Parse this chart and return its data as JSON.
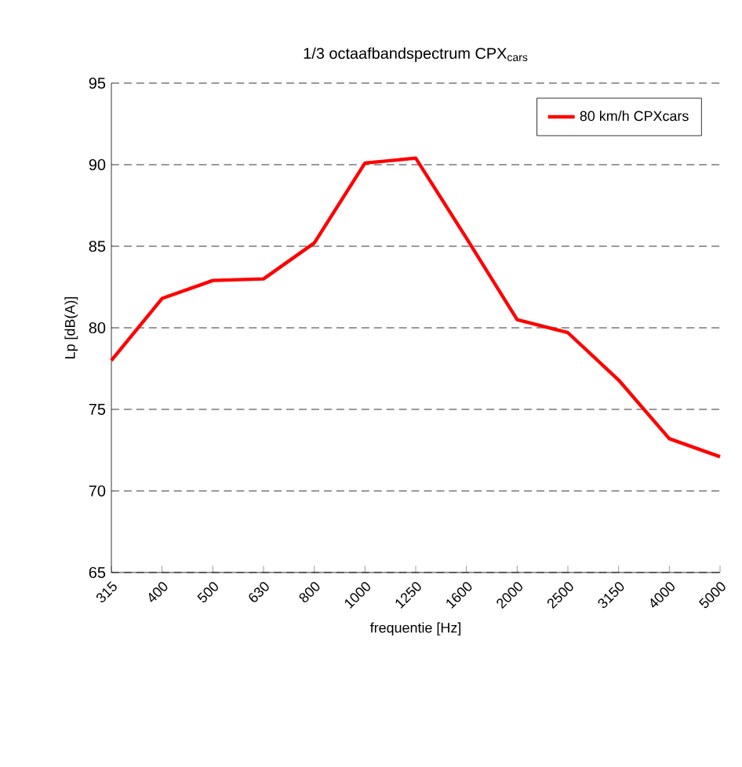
{
  "chart_data": {
    "type": "line",
    "title": "1/3 octaafbandspectrum CPX$_{cars}$",
    "xlabel": "frequentie [Hz]",
    "ylabel": "Lp [dB(A)]",
    "categories": [
      "315",
      "400",
      "500",
      "630",
      "800",
      "1000",
      "1250",
      "1600",
      "2000",
      "2500",
      "3150",
      "4000",
      "5000"
    ],
    "series": [
      {
        "name": "80 km/h CPXcars",
        "color": "#ff0000",
        "values": [
          78.0,
          81.8,
          82.9,
          83.0,
          85.2,
          90.1,
          90.4,
          85.5,
          80.5,
          79.7,
          76.8,
          73.2,
          72.1
        ]
      }
    ],
    "ylim": [
      65,
      95
    ],
    "yticks": [
      65,
      70,
      75,
      80,
      85,
      90,
      95
    ],
    "grid": "y",
    "legend": "top right",
    "marker": "none",
    "line_style": "solid"
  }
}
